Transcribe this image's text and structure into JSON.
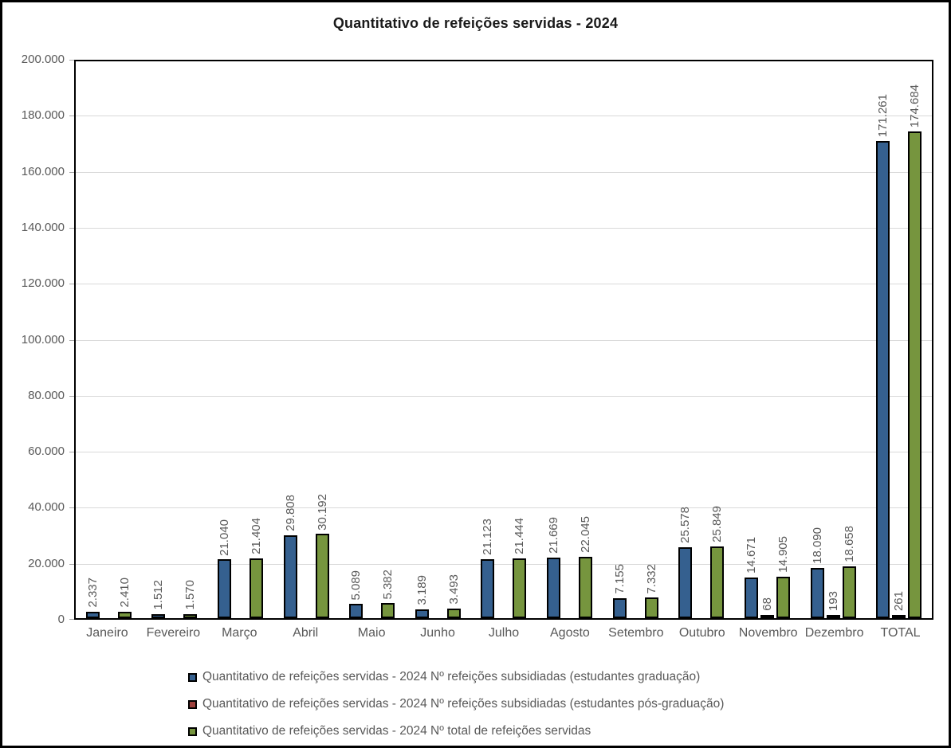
{
  "title": "Quantitativo de refeições servidas - 2024",
  "style_colors": {
    "bar_border": "#000000",
    "gridline": "#D9D9D9",
    "axis_text": "#595959",
    "title_text": "#1a1a1a",
    "figure_border": "#000000"
  },
  "chart_data": {
    "type": "bar",
    "title": "Quantitativo de refeições servidas - 2024",
    "categories": [
      "Janeiro",
      "Fevereiro",
      "Março",
      "Abril",
      "Maio",
      "Junho",
      "Julho",
      "Agosto",
      "Setembro",
      "Outubro",
      "Novembro",
      "Dezembro",
      "TOTAL"
    ],
    "series": [
      {
        "name": "Quantitativo de refeições servidas - 2024 Nº refeições subsidiadas (estudantes graduação)",
        "color": "#35608F",
        "values": [
          2337,
          1512,
          21040,
          29808,
          5089,
          3189,
          21123,
          21669,
          7155,
          25578,
          14671,
          18090,
          171261
        ],
        "labels": [
          "2.337",
          "1.512",
          "21.040",
          "29.808",
          "5.089",
          "3.189",
          "21.123",
          "21.669",
          "7.155",
          "25.578",
          "14.671",
          "18.090",
          "171.261"
        ]
      },
      {
        "name": "Quantitativo de refeições servidas - 2024 Nº refeições subsidiadas (estudantes pós-graduação)",
        "color": "#9E403C",
        "values": [
          0,
          0,
          0,
          0,
          0,
          0,
          0,
          0,
          0,
          0,
          68,
          193,
          261
        ],
        "labels": [
          "",
          "",
          "",
          "",
          "",
          "",
          "",
          "",
          "",
          "",
          "68",
          "193",
          "261"
        ]
      },
      {
        "name": "Quantitativo de refeições servidas - 2024 Nº total de refeições servidas",
        "color": "#76953E",
        "values": [
          2410,
          1570,
          21404,
          30192,
          5382,
          3493,
          21444,
          22045,
          7332,
          25849,
          14905,
          18658,
          174684
        ],
        "labels": [
          "2.410",
          "1.570",
          "21.404",
          "30.192",
          "5.382",
          "3.493",
          "21.444",
          "22.045",
          "7.332",
          "25.849",
          "14.905",
          "18.658",
          "174.684"
        ]
      }
    ],
    "ylim": [
      0,
      200000
    ],
    "ytick_labels": [
      "0",
      "20.000",
      "40.000",
      "60.000",
      "80.000",
      "100.000",
      "120.000",
      "140.000",
      "160.000",
      "180.000",
      "200.000"
    ],
    "grid": true,
    "legend_position": "bottom-left"
  }
}
